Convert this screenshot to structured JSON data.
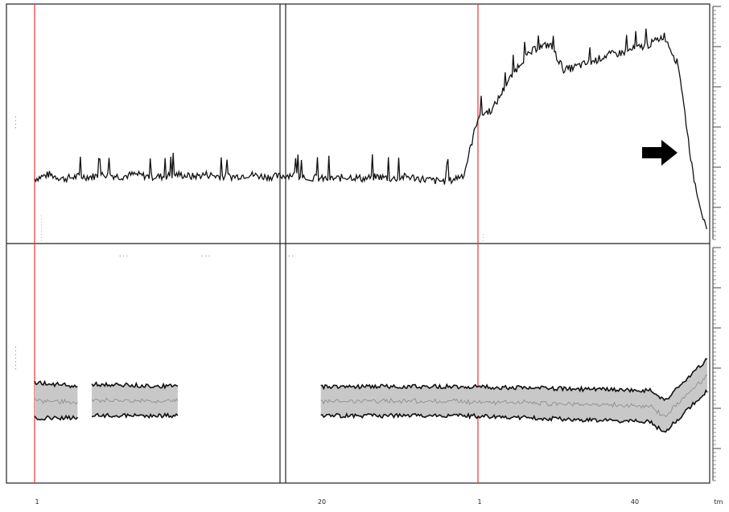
{
  "chart_data": {
    "type": "line",
    "title": "",
    "panels": [
      {
        "name": "top",
        "ylabel": "",
        "series": [
          {
            "time": [
              0,
              1,
              2,
              3,
              4,
              5,
              6,
              7,
              8,
              9,
              10,
              11,
              12,
              13,
              14,
              15,
              16,
              17,
              18,
              19,
              20,
              21,
              22,
              23,
              24,
              25,
              26,
              27,
              28,
              29,
              30,
              31,
              32,
              33,
              34,
              35,
              36,
              37,
              38,
              39,
              40,
              41,
              42,
              43,
              44,
              45,
              46,
              47
            ],
            "values": [
              0.28,
              0.3,
              0.28,
              0.29,
              0.29,
              0.3,
              0.29,
              0.3,
              0.29,
              0.29,
              0.3,
              0.29,
              0.3,
              0.29,
              0.29,
              0.3,
              0.29,
              0.29,
              0.3,
              0.29,
              0.28,
              0.28,
              0.29,
              0.28,
              0.29,
              0.28,
              0.29,
              0.28,
              0.27,
              0.27,
              0.3,
              0.57,
              0.6,
              0.72,
              0.82,
              0.88,
              0.9,
              0.78,
              0.8,
              0.82,
              0.85,
              0.86,
              0.88,
              0.9,
              0.94,
              0.8,
              0.3,
              0.02
            ]
          }
        ]
      },
      {
        "name": "bottom",
        "ylabel": "",
        "series": [
          {
            "name": "upper",
            "segments": [
              {
                "time": [
                  0,
                  3
                ],
                "values": [
                  0.44,
                  0.42
                ]
              },
              {
                "time": [
                  4,
                  10
                ],
                "values": [
                  0.43,
                  0.42
                ]
              },
              {
                "time": [
                  20,
                  30
                ],
                "values": [
                  0.42,
                  0.42
                ]
              },
              {
                "time": [
                  30,
                  43,
                  44,
                  47
                ],
                "values": [
                  0.42,
                  0.4,
                  0.35,
                  0.55
                ]
              }
            ]
          },
          {
            "name": "lower",
            "segments": [
              {
                "time": [
                  0,
                  3
                ],
                "values": [
                  0.27,
                  0.27
                ]
              },
              {
                "time": [
                  4,
                  10
                ],
                "values": [
                  0.28,
                  0.28
                ]
              },
              {
                "time": [
                  20,
                  30
                ],
                "values": [
                  0.28,
                  0.28
                ]
              },
              {
                "time": [
                  30,
                  43,
                  44,
                  47
                ],
                "values": [
                  0.28,
                  0.25,
                  0.2,
                  0.4
                ]
              }
            ]
          }
        ]
      }
    ],
    "x_tick_labels": [
      "1",
      "20",
      "1",
      "40",
      "tm"
    ],
    "annotation": "arrow pointing at the drop of the top trace"
  }
}
